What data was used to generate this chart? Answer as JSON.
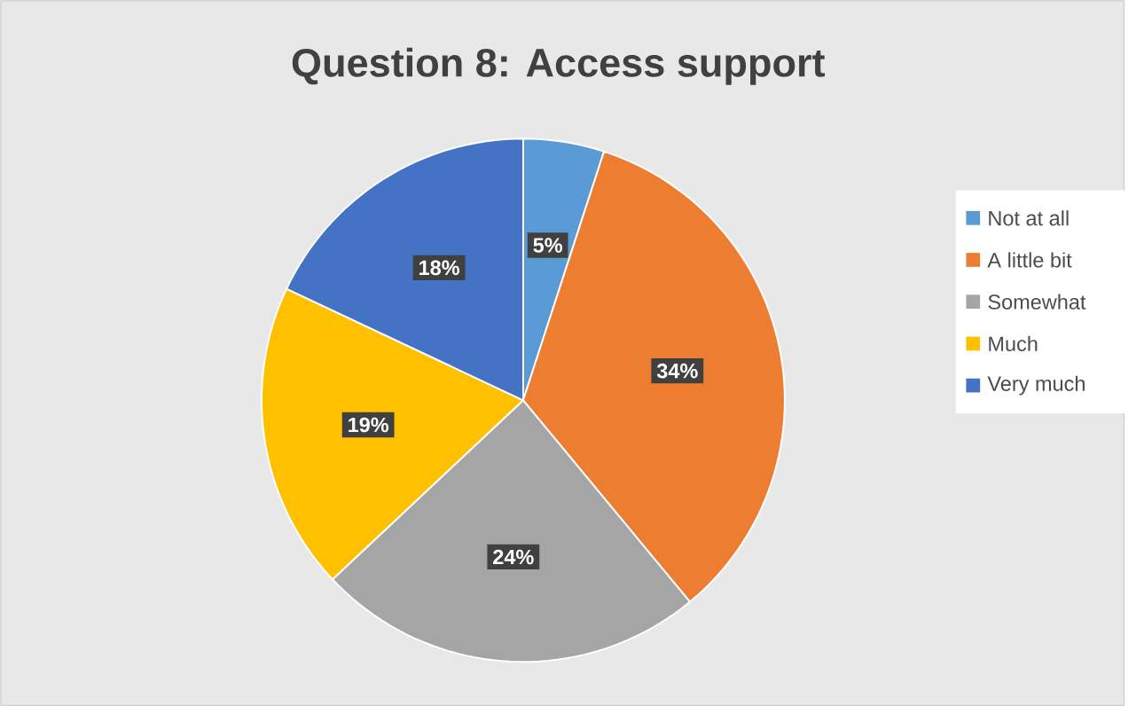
{
  "chart_data": {
    "type": "pie",
    "title": "Question 8: Access support",
    "categories": [
      "Not at all",
      "A little bit",
      "Somewhat",
      "Much",
      "Very much"
    ],
    "values": [
      5,
      34,
      24,
      19,
      18
    ],
    "colors": [
      "#5b9bd5",
      "#ed7d31",
      "#a5a5a5",
      "#ffc000",
      "#4472c4"
    ],
    "value_labels": [
      "5%",
      "34%",
      "24%",
      "19%",
      "18%"
    ],
    "legend": "right"
  }
}
